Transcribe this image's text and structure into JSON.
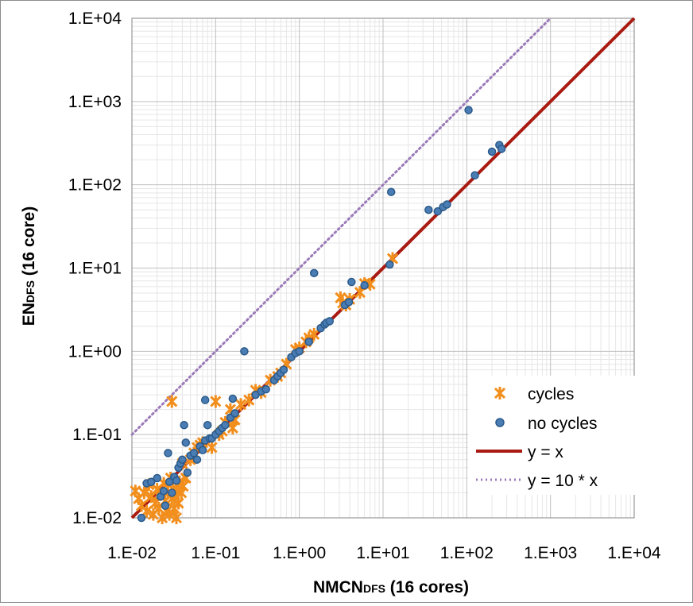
{
  "chart_data": {
    "type": "scatter",
    "xscale": "log",
    "yscale": "log",
    "xlim": [
      0.01,
      10000
    ],
    "ylim": [
      0.01,
      10000
    ],
    "grid": true,
    "xlabel_main": "NMCN",
    "xlabel_sub": "DFS",
    "xlabel_tail": " (16 cores)",
    "ylabel_main": "EN",
    "ylabel_sub": "DFS",
    "ylabel_tail": " (16 core)",
    "x_ticks": [
      "1.E-02",
      "1.E-01",
      "1.E+00",
      "1.E+01",
      "1.E+02",
      "1.E+03",
      "1.E+04"
    ],
    "y_ticks": [
      "1.E-02",
      "1.E-01",
      "1.E+00",
      "1.E+01",
      "1.E+02",
      "1.E+03",
      "1.E+04"
    ],
    "legend_position": "bottom-right",
    "series": [
      {
        "name": "cycles",
        "marker": "x",
        "color": "#f28e1c",
        "points": [
          [
            0.011,
            0.021
          ],
          [
            0.012,
            0.017
          ],
          [
            0.013,
            0.014
          ],
          [
            0.014,
            0.02
          ],
          [
            0.015,
            0.012
          ],
          [
            0.016,
            0.025
          ],
          [
            0.017,
            0.018
          ],
          [
            0.018,
            0.011
          ],
          [
            0.019,
            0.015
          ],
          [
            0.02,
            0.022
          ],
          [
            0.021,
            0.013
          ],
          [
            0.022,
            0.019
          ],
          [
            0.023,
            0.01
          ],
          [
            0.024,
            0.026
          ],
          [
            0.025,
            0.016
          ],
          [
            0.026,
            0.012
          ],
          [
            0.027,
            0.02
          ],
          [
            0.028,
            0.011
          ],
          [
            0.029,
            0.03
          ],
          [
            0.03,
            0.017
          ],
          [
            0.031,
            0.022
          ],
          [
            0.032,
            0.013
          ],
          [
            0.033,
            0.018
          ],
          [
            0.034,
            0.01
          ],
          [
            0.035,
            0.021
          ],
          [
            0.036,
            0.015
          ],
          [
            0.037,
            0.027
          ],
          [
            0.039,
            0.02
          ],
          [
            0.041,
            0.024
          ],
          [
            0.044,
            0.03
          ],
          [
            0.03,
            0.25
          ],
          [
            0.04,
            0.045
          ],
          [
            0.05,
            0.05
          ],
          [
            0.055,
            0.06
          ],
          [
            0.06,
            0.07
          ],
          [
            0.065,
            0.075
          ],
          [
            0.07,
            0.08
          ],
          [
            0.09,
            0.07
          ],
          [
            0.1,
            0.25
          ],
          [
            0.11,
            0.1
          ],
          [
            0.12,
            0.11
          ],
          [
            0.13,
            0.14
          ],
          [
            0.15,
            0.2
          ],
          [
            0.16,
            0.12
          ],
          [
            0.17,
            0.15
          ],
          [
            0.2,
            0.23
          ],
          [
            0.25,
            0.26
          ],
          [
            0.3,
            0.34
          ],
          [
            0.35,
            0.32
          ],
          [
            0.45,
            0.45
          ],
          [
            0.55,
            0.5
          ],
          [
            0.6,
            0.55
          ],
          [
            0.7,
            0.7
          ],
          [
            0.9,
            1.05
          ],
          [
            1.0,
            1.1
          ],
          [
            1.2,
            1.3
          ],
          [
            1.3,
            1.45
          ],
          [
            1.5,
            1.6
          ],
          [
            3.1,
            4.4
          ],
          [
            3.3,
            3.8
          ],
          [
            3.6,
            3.6
          ],
          [
            4.0,
            4.2
          ],
          [
            5.3,
            5.1
          ],
          [
            6.0,
            6.5
          ],
          [
            7.0,
            6.4
          ],
          [
            13.0,
            13.0
          ]
        ]
      },
      {
        "name": "no cycles",
        "marker": "circle",
        "color": "#4a7db4",
        "points": [
          [
            0.013,
            0.01
          ],
          [
            0.015,
            0.026
          ],
          [
            0.017,
            0.027
          ],
          [
            0.02,
            0.03
          ],
          [
            0.022,
            0.018
          ],
          [
            0.024,
            0.021
          ],
          [
            0.025,
            0.014
          ],
          [
            0.027,
            0.06
          ],
          [
            0.028,
            0.027
          ],
          [
            0.03,
            0.02
          ],
          [
            0.032,
            0.031
          ],
          [
            0.034,
            0.028
          ],
          [
            0.036,
            0.04
          ],
          [
            0.038,
            0.045
          ],
          [
            0.04,
            0.05
          ],
          [
            0.042,
            0.13
          ],
          [
            0.044,
            0.08
          ],
          [
            0.046,
            0.035
          ],
          [
            0.05,
            0.056
          ],
          [
            0.055,
            0.06
          ],
          [
            0.06,
            0.05
          ],
          [
            0.065,
            0.072
          ],
          [
            0.07,
            0.065
          ],
          [
            0.075,
            0.085
          ],
          [
            0.075,
            0.26
          ],
          [
            0.08,
            0.13
          ],
          [
            0.085,
            0.09
          ],
          [
            0.09,
            0.09
          ],
          [
            0.1,
            0.1
          ],
          [
            0.11,
            0.11
          ],
          [
            0.12,
            0.12
          ],
          [
            0.13,
            0.13
          ],
          [
            0.15,
            0.16
          ],
          [
            0.16,
            0.27
          ],
          [
            0.17,
            0.18
          ],
          [
            0.22,
            1.0
          ],
          [
            0.3,
            0.3
          ],
          [
            0.35,
            0.33
          ],
          [
            0.4,
            0.35
          ],
          [
            0.5,
            0.45
          ],
          [
            0.55,
            0.5
          ],
          [
            0.6,
            0.55
          ],
          [
            0.65,
            0.6
          ],
          [
            0.8,
            0.85
          ],
          [
            0.9,
            0.95
          ],
          [
            1.0,
            1.0
          ],
          [
            1.3,
            1.3
          ],
          [
            1.5,
            8.7
          ],
          [
            1.8,
            1.9
          ],
          [
            2.0,
            2.1
          ],
          [
            2.1,
            2.2
          ],
          [
            2.3,
            2.3
          ],
          [
            3.5,
            3.6
          ],
          [
            3.9,
            3.9
          ],
          [
            4.2,
            6.8
          ],
          [
            6.0,
            6.2
          ],
          [
            12.0,
            11.0
          ],
          [
            12.5,
            82
          ],
          [
            35,
            50
          ],
          [
            45,
            48
          ],
          [
            52,
            54
          ],
          [
            58,
            58
          ],
          [
            105,
            790
          ],
          [
            125,
            130
          ],
          [
            200,
            250
          ],
          [
            245,
            300
          ],
          [
            260,
            270
          ]
        ]
      },
      {
        "name": "y = x",
        "marker": "line",
        "color": "#a91b12",
        "points": [
          [
            0.01,
            0.01
          ],
          [
            10000,
            10000
          ]
        ]
      },
      {
        "name": "y = 10 * x",
        "marker": "dotted-line",
        "color": "#9b7ab8",
        "points": [
          [
            0.01,
            0.1
          ],
          [
            1000,
            10000
          ]
        ]
      }
    ]
  }
}
